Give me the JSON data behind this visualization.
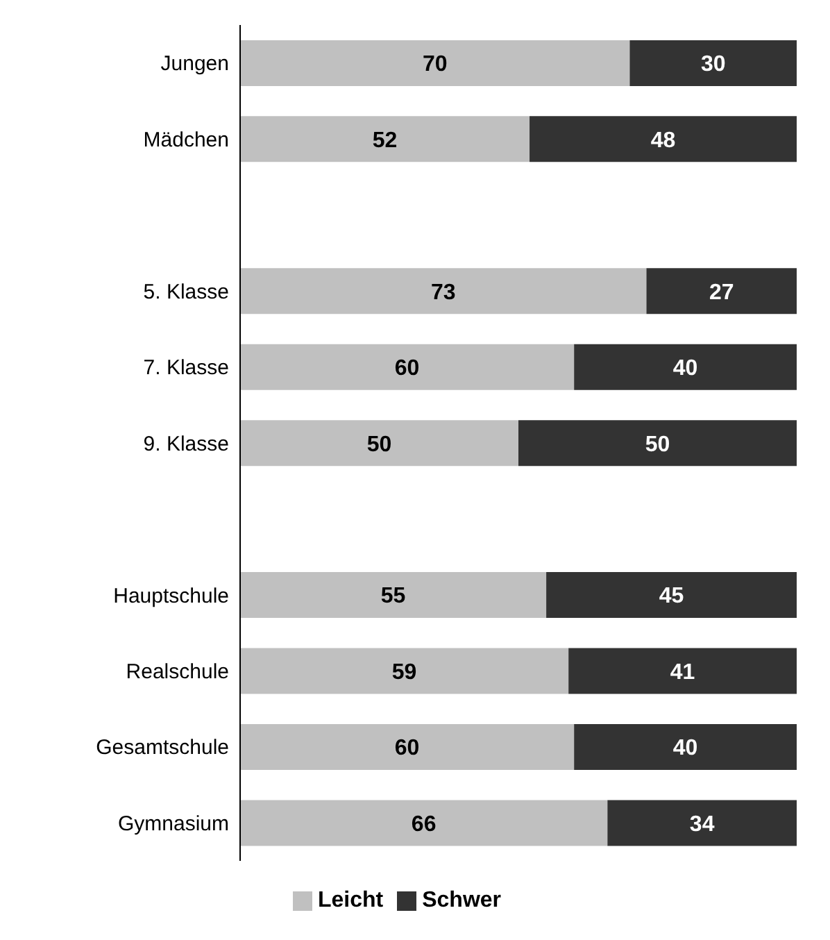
{
  "chart_data": {
    "type": "bar",
    "orientation": "horizontal",
    "stacked": true,
    "categories": [
      "Jungen",
      "Mädchen",
      null,
      "5. Klasse",
      "7. Klasse",
      "9. Klasse",
      null,
      "Hauptschule",
      "Realschule",
      "Gesamtschule",
      "Gymnasium"
    ],
    "series": [
      {
        "name": "Leicht",
        "color": "#c0c0c0",
        "values": [
          70,
          52,
          null,
          73,
          60,
          50,
          null,
          55,
          59,
          60,
          66
        ]
      },
      {
        "name": "Schwer",
        "color": "#333333",
        "values": [
          30,
          48,
          null,
          27,
          40,
          50,
          null,
          45,
          41,
          40,
          34
        ]
      }
    ],
    "xlim": [
      0,
      100
    ],
    "data_labels": true,
    "legend": "bottom",
    "tick_labels": "y"
  }
}
